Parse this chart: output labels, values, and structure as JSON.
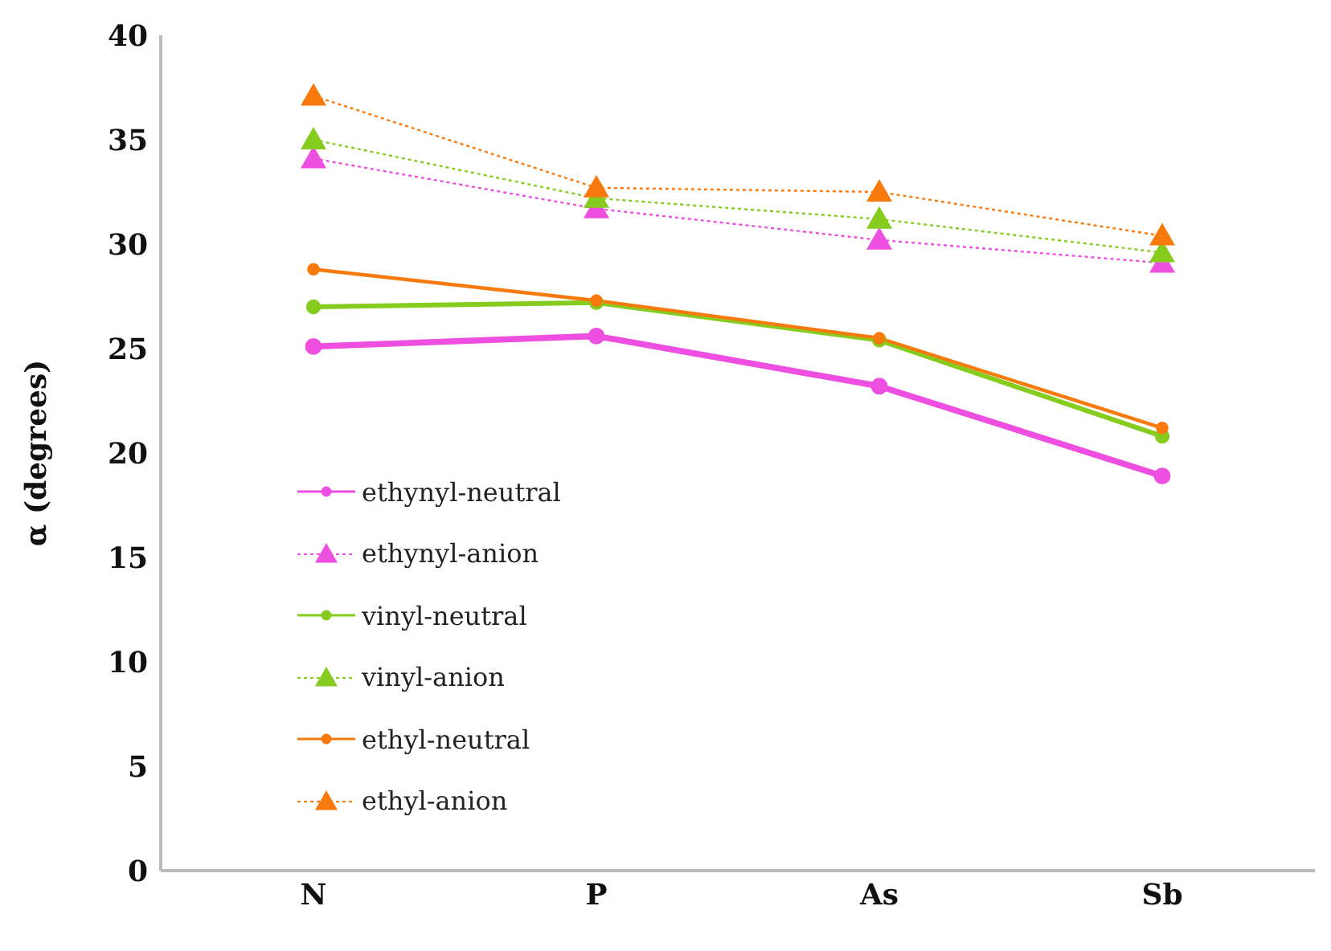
{
  "chart_data": {
    "type": "line",
    "ylabel": "α (degrees)",
    "categories": [
      "N",
      "P",
      "As",
      "Sb"
    ],
    "ylim": [
      0,
      40
    ],
    "yticks": [
      0,
      5,
      10,
      15,
      20,
      25,
      30,
      35,
      40
    ],
    "legend": "left",
    "series": [
      {
        "name": "ethynyl-neutral",
        "color": "#ee4fe0",
        "values": [
          25.1,
          25.6,
          23.2,
          18.9
        ],
        "marker": "circle",
        "line_style": "solid"
      },
      {
        "name": "ethynyl-anion",
        "color": "#ee4fe0",
        "values": [
          34.1,
          31.7,
          30.2,
          29.1
        ],
        "marker": "triangle",
        "line_style": "dotted"
      },
      {
        "name": "vinyl-neutral",
        "color": "#86cc1f",
        "values": [
          27.0,
          27.2,
          25.4,
          20.8
        ],
        "marker": "circle",
        "line_style": "solid"
      },
      {
        "name": "vinyl-anion",
        "color": "#86cc1f",
        "values": [
          35.0,
          32.2,
          31.2,
          29.6
        ],
        "marker": "triangle",
        "line_style": "dotted"
      },
      {
        "name": "ethyl-neutral",
        "color": "#f87a0c",
        "values": [
          28.8,
          27.3,
          25.5,
          21.2
        ],
        "marker": "circle",
        "line_style": "solid"
      },
      {
        "name": "ethyl-anion",
        "color": "#f87a0c",
        "values": [
          37.1,
          32.7,
          32.5,
          30.4
        ],
        "marker": "triangle",
        "line_style": "dotted"
      }
    ]
  }
}
